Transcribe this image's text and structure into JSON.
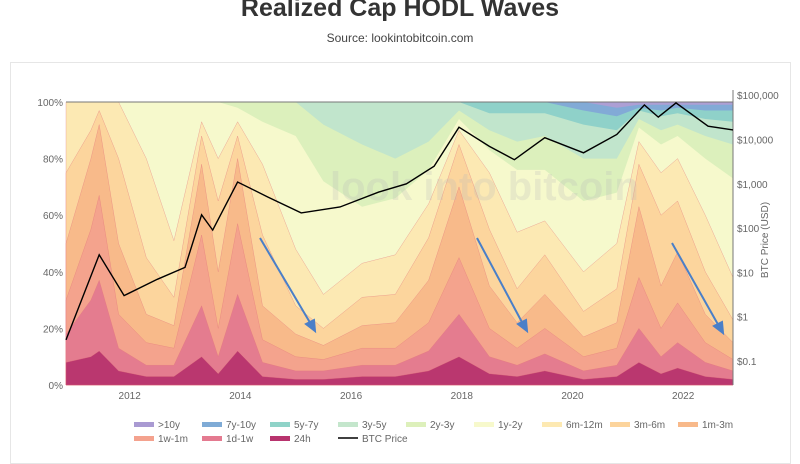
{
  "header": {
    "title": "Realized Cap HODL Waves",
    "source": "Source: lookintobitcoin.com"
  },
  "watermark": "look into bitcoin",
  "chart_data": {
    "type": "area",
    "title": "Realized Cap HODL Waves",
    "ylabel_left": "",
    "ylabel_right": "BTC Price (USD)",
    "x_ticks": [
      "2012",
      "2014",
      "2016",
      "2018",
      "2020",
      "2022"
    ],
    "x_tick_values": [
      2012,
      2014,
      2016,
      2018,
      2020,
      2022
    ],
    "xlim": [
      2010.85,
      2022.9
    ],
    "y_ticks": [
      "0%",
      "20%",
      "40%",
      "60%",
      "80%",
      "100%"
    ],
    "ylim": [
      0,
      100
    ],
    "y2_ticks": [
      "$0.1",
      "$1",
      "$10",
      "$100",
      "$1,000",
      "$10,000",
      "$100,000"
    ],
    "y2_tick_values": [
      0.1,
      1,
      10,
      100,
      1000,
      10000,
      100000
    ],
    "y2_scale": "log",
    "series": [
      "24h",
      "1d-1w",
      "1w-1m",
      "1m-3m",
      "3m-6m",
      "6m-12m",
      "1y-2y",
      "2y-3y",
      "3y-5y",
      "5y-7y",
      "7y-10y",
      ">10y"
    ],
    "colors": [
      "#b8346e",
      "#e47a90",
      "#f4a28e",
      "#f8b98a",
      "#fcd49c",
      "#fde9b2",
      "#f7f9cc",
      "#ddf0bb",
      "#c4e6cc",
      "#8fd3c8",
      "#7fabd6",
      "#a99ad2"
    ],
    "legend_order": [
      ">10y",
      "7y-10y",
      "5y-7y",
      "3y-5y",
      "2y-3y",
      "1y-2y",
      "6m-12m",
      "3m-6m",
      "1m-3m",
      "1w-1m",
      "1d-1w",
      "24h",
      "BTC Price"
    ],
    "dates": [
      2010.85,
      2011.3,
      2011.45,
      2011.8,
      2012.3,
      2012.8,
      2013.3,
      2013.6,
      2013.95,
      2014.4,
      2015.0,
      2015.5,
      2016.2,
      2016.8,
      2017.4,
      2017.95,
      2018.5,
      2019.0,
      2019.5,
      2020.2,
      2020.8,
      2021.2,
      2021.6,
      2021.9,
      2022.4,
      2022.9
    ],
    "shares_percent_by_date": [
      [
        8,
        10,
        12,
        20,
        25,
        25,
        0,
        0,
        0,
        0,
        0,
        0
      ],
      [
        10,
        20,
        25,
        25,
        10,
        10,
        0,
        0,
        0,
        0,
        0,
        0
      ],
      [
        12,
        25,
        30,
        25,
        5,
        3,
        0,
        0,
        0,
        0,
        0,
        0
      ],
      [
        5,
        8,
        12,
        25,
        30,
        20,
        0,
        0,
        0,
        0,
        0,
        0
      ],
      [
        3,
        4,
        8,
        10,
        20,
        35,
        20,
        0,
        0,
        0,
        0,
        0
      ],
      [
        3,
        4,
        6,
        8,
        10,
        20,
        49,
        0,
        0,
        0,
        0,
        0
      ],
      [
        10,
        18,
        25,
        25,
        10,
        5,
        7,
        0,
        0,
        0,
        0,
        0
      ],
      [
        4,
        6,
        10,
        20,
        25,
        15,
        20,
        0,
        0,
        0,
        0,
        0
      ],
      [
        12,
        20,
        25,
        23,
        8,
        5,
        5,
        2,
        0,
        0,
        0,
        0
      ],
      [
        3,
        5,
        8,
        12,
        25,
        25,
        15,
        7,
        0,
        0,
        0,
        0
      ],
      [
        2,
        3,
        5,
        8,
        10,
        20,
        40,
        12,
        0,
        0,
        0,
        0
      ],
      [
        2,
        3,
        4,
        5,
        6,
        12,
        40,
        20,
        8,
        0,
        0,
        0
      ],
      [
        3,
        4,
        6,
        8,
        10,
        12,
        20,
        22,
        15,
        0,
        0,
        0
      ],
      [
        3,
        4,
        6,
        9,
        10,
        14,
        20,
        14,
        20,
        0,
        0,
        0
      ],
      [
        5,
        7,
        10,
        15,
        15,
        12,
        12,
        10,
        14,
        0,
        0,
        0
      ],
      [
        10,
        15,
        20,
        25,
        15,
        5,
        4,
        3,
        3,
        0,
        0,
        0
      ],
      [
        4,
        6,
        10,
        15,
        20,
        20,
        8,
        7,
        6,
        4,
        0,
        0
      ],
      [
        3,
        4,
        6,
        9,
        12,
        20,
        22,
        10,
        10,
        4,
        0,
        0
      ],
      [
        5,
        6,
        9,
        12,
        14,
        12,
        18,
        12,
        8,
        4,
        0,
        0
      ],
      [
        2,
        3,
        5,
        7,
        9,
        14,
        25,
        15,
        12,
        5,
        3,
        0
      ],
      [
        3,
        4,
        6,
        9,
        12,
        16,
        18,
        12,
        10,
        5,
        3,
        2
      ],
      [
        8,
        12,
        18,
        25,
        15,
        8,
        5,
        3,
        3,
        1,
        1,
        1
      ],
      [
        4,
        6,
        10,
        15,
        25,
        15,
        10,
        5,
        5,
        2,
        2,
        1
      ],
      [
        6,
        9,
        14,
        18,
        18,
        15,
        8,
        4,
        4,
        2,
        1,
        1
      ],
      [
        3,
        5,
        7,
        10,
        15,
        20,
        20,
        8,
        6,
        3,
        2,
        1
      ],
      [
        2,
        3,
        4,
        6,
        8,
        15,
        35,
        12,
        8,
        4,
        2,
        1
      ]
    ],
    "btc_price": {
      "name": "BTC Price",
      "color": "#000000",
      "x": [
        2010.85,
        2011.45,
        2011.9,
        2012.5,
        2013.0,
        2013.3,
        2013.5,
        2013.95,
        2014.5,
        2015.1,
        2015.8,
        2016.5,
        2017.0,
        2017.5,
        2017.95,
        2018.5,
        2018.95,
        2019.5,
        2020.2,
        2020.8,
        2021.3,
        2021.55,
        2021.87,
        2022.45,
        2022.9
      ],
      "y": [
        0.3,
        25,
        3,
        7,
        13,
        200,
        90,
        1100,
        500,
        220,
        300,
        650,
        1000,
        2500,
        19000,
        7000,
        3500,
        11000,
        5000,
        13000,
        60000,
        32000,
        67000,
        20000,
        16500
      ]
    }
  }
}
